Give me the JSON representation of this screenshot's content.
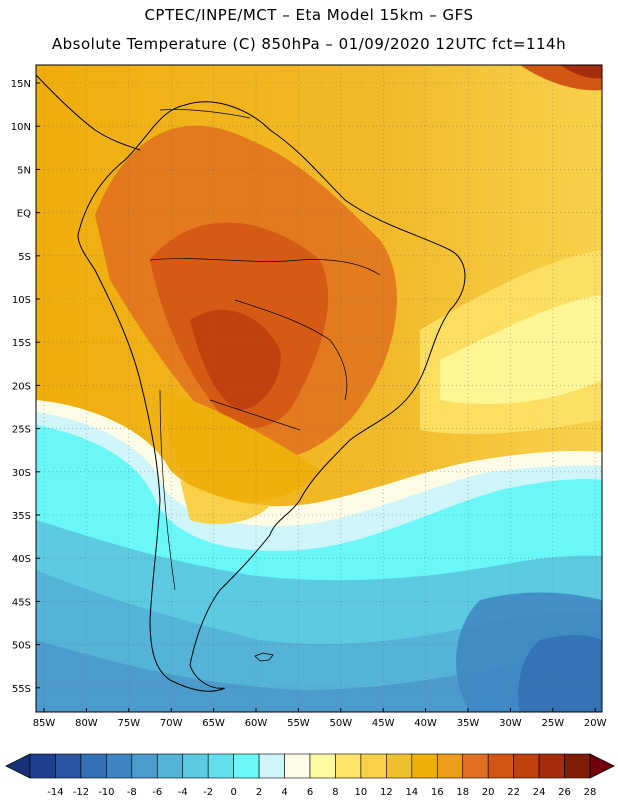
{
  "header": {
    "line1": "CPTEC/INPE/MCT –  Eta Model 15km – GFS",
    "line2": "Absolute Temperature (C) 850hPa – 01/09/2020 12UTC fct=114h"
  },
  "map": {
    "lat_labels": [
      "15N",
      "10N",
      "5N",
      "EQ",
      "5S",
      "10S",
      "15S",
      "20S",
      "25S",
      "30S",
      "35S",
      "40S",
      "45S",
      "50S",
      "55S"
    ],
    "lon_labels": [
      "85W",
      "80W",
      "75W",
      "70W",
      "65W",
      "60W",
      "55W",
      "50W",
      "45W",
      "40W",
      "35W",
      "30W",
      "25W",
      "20W"
    ]
  },
  "colorbar": {
    "labels": [
      "-14",
      "-12",
      "-10",
      "-8",
      "-6",
      "-4",
      "-2",
      "0",
      "2",
      "4",
      "6",
      "8",
      "10",
      "12",
      "14",
      "16",
      "18",
      "20",
      "22",
      "24",
      "26",
      "28"
    ],
    "colors": [
      "#1f3f8f",
      "#2b55a3",
      "#3470b5",
      "#3d86c2",
      "#4b9ccc",
      "#55b3d8",
      "#5ccbe2",
      "#62e1ec",
      "#6af7f7",
      "#cdf5fa",
      "#fefbe6",
      "#fefaa2",
      "#fde36a",
      "#f8d148",
      "#f0c12f",
      "#efb00c",
      "#ee9a1a",
      "#e0701f",
      "#d35613",
      "#c0400e",
      "#a52c0d",
      "#7e1e08"
    ],
    "under_color": "#16327a",
    "over_color": "#73000d"
  }
}
